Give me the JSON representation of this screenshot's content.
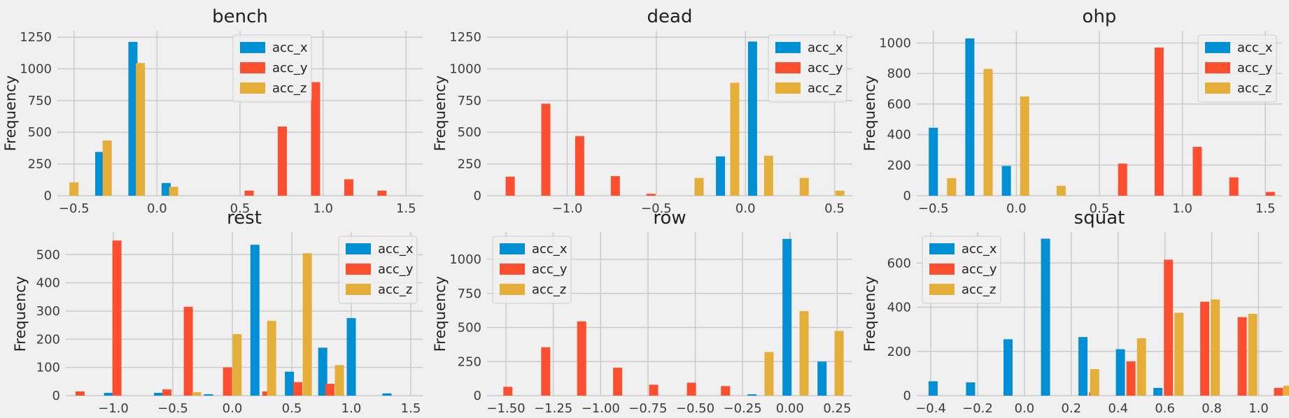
{
  "figure": {
    "background": "#f0f0f0",
    "grid_color": "#cbcbcb"
  },
  "chart_data": [
    {
      "type": "bar",
      "title": "bench",
      "ylabel": "Frequency",
      "xlabel": "",
      "xlim": [
        -0.6,
        1.6
      ],
      "ylim": [
        0,
        1300
      ],
      "xticks": [
        -0.5,
        0.0,
        0.5,
        1.0,
        1.5
      ],
      "yticks": [
        0,
        250,
        500,
        750,
        1000,
        1250
      ],
      "xtick_decimals": 1,
      "legend": "top-center",
      "grid": true,
      "series": [
        {
          "name": "acc_x",
          "color": "#008fd5",
          "points": [
            [
              -0.345,
              345
            ],
            [
              -0.145,
              1212
            ],
            [
              0.055,
              100
            ]
          ]
        },
        {
          "name": "acc_y",
          "color": "#fc4f30",
          "points": [
            [
              0.555,
              40
            ],
            [
              0.755,
              545
            ],
            [
              0.955,
              895
            ],
            [
              1.155,
              130
            ],
            [
              1.355,
              40
            ]
          ]
        },
        {
          "name": "acc_z",
          "color": "#e5ae38",
          "points": [
            [
              -0.5,
              105
            ],
            [
              -0.3,
              435
            ],
            [
              -0.1,
              1045
            ],
            [
              0.1,
              70
            ]
          ]
        }
      ]
    },
    {
      "type": "bar",
      "title": "dead",
      "ylabel": "Frequency",
      "xlabel": "",
      "xlim": [
        -1.45,
        0.6
      ],
      "ylim": [
        0,
        1300
      ],
      "xticks": [
        -1.0,
        -0.5,
        0.0,
        0.5
      ],
      "yticks": [
        0,
        250,
        500,
        750,
        1000,
        1250
      ],
      "xtick_decimals": 1,
      "legend": "top-right",
      "grid": true,
      "series": [
        {
          "name": "acc_x",
          "color": "#008fd5",
          "points": [
            [
              -0.14,
              310
            ],
            [
              0.04,
              1215
            ]
          ]
        },
        {
          "name": "acc_y",
          "color": "#fc4f30",
          "points": [
            [
              -1.32,
              150
            ],
            [
              -1.12,
              725
            ],
            [
              -0.93,
              470
            ],
            [
              -0.73,
              155
            ],
            [
              -0.53,
              15
            ]
          ]
        },
        {
          "name": "acc_z",
          "color": "#e5ae38",
          "points": [
            [
              -0.26,
              140
            ],
            [
              -0.06,
              890
            ],
            [
              0.13,
              315
            ],
            [
              0.33,
              140
            ],
            [
              0.53,
              40
            ]
          ]
        }
      ]
    },
    {
      "type": "bar",
      "title": "ohp",
      "ylabel": "Frequency",
      "xlabel": "",
      "xlim": [
        -0.6,
        1.6
      ],
      "ylim": [
        0,
        1080
      ],
      "xticks": [
        -0.5,
        0.0,
        0.5,
        1.0,
        1.5
      ],
      "yticks": [
        0,
        200,
        400,
        600,
        800,
        1000
      ],
      "xtick_decimals": 1,
      "legend": "top-right",
      "grid": true,
      "series": [
        {
          "name": "acc_x",
          "color": "#008fd5",
          "points": [
            [
              -0.5,
              445
            ],
            [
              -0.28,
              1030
            ],
            [
              -0.06,
              195
            ]
          ]
        },
        {
          "name": "acc_y",
          "color": "#fc4f30",
          "points": [
            [
              0.64,
              210
            ],
            [
              0.86,
              970
            ],
            [
              1.09,
              320
            ],
            [
              1.31,
              120
            ],
            [
              1.53,
              25
            ]
          ]
        },
        {
          "name": "acc_z",
          "color": "#e5ae38",
          "points": [
            [
              -0.39,
              115
            ],
            [
              -0.17,
              830
            ],
            [
              0.05,
              650
            ],
            [
              0.27,
              65
            ]
          ]
        }
      ]
    },
    {
      "type": "bar",
      "title": "rest",
      "ylabel": "Frequency",
      "xlabel": "",
      "xlim": [
        -1.4,
        1.6
      ],
      "ylim": [
        0,
        580
      ],
      "xticks": [
        -1.0,
        -0.5,
        0.0,
        0.5,
        1.0,
        1.5
      ],
      "yticks": [
        0,
        100,
        200,
        300,
        400,
        500
      ],
      "xtick_decimals": 1,
      "legend": "top-right",
      "grid": true,
      "series": [
        {
          "name": "acc_x",
          "color": "#008fd5",
          "points": [
            [
              -1.04,
              10
            ],
            [
              -0.62,
              10
            ],
            [
              -0.2,
              5
            ],
            [
              0.19,
              535
            ],
            [
              0.48,
              85
            ],
            [
              0.76,
              170
            ],
            [
              1.0,
              275
            ],
            [
              1.3,
              8
            ]
          ]
        },
        {
          "name": "acc_y",
          "color": "#fc4f30",
          "points": [
            [
              -1.28,
              15
            ],
            [
              -0.97,
              550
            ],
            [
              -0.55,
              22
            ],
            [
              -0.37,
              315
            ],
            [
              -0.04,
              100
            ],
            [
              0.29,
              15
            ],
            [
              0.55,
              48
            ],
            [
              0.82,
              42
            ]
          ]
        },
        {
          "name": "acc_z",
          "color": "#e5ae38",
          "points": [
            [
              -0.3,
              12
            ],
            [
              0.04,
              218
            ],
            [
              0.33,
              265
            ],
            [
              0.63,
              505
            ],
            [
              0.9,
              108
            ]
          ]
        }
      ]
    },
    {
      "type": "bar",
      "title": "row",
      "ylabel": "Frequency",
      "xlabel": "",
      "xlim": [
        -1.6,
        0.33
      ],
      "ylim": [
        0,
        1200
      ],
      "xticks": [
        -1.5,
        -1.25,
        -1.0,
        -0.75,
        -0.5,
        -0.25,
        0.0,
        0.25
      ],
      "yticks": [
        0,
        250,
        500,
        750,
        1000
      ],
      "xtick_decimals": 2,
      "legend": "top-left",
      "grid": true,
      "series": [
        {
          "name": "acc_x",
          "color": "#008fd5",
          "points": [
            [
              -0.2,
              10
            ],
            [
              -0.015,
              1150
            ],
            [
              0.17,
              250
            ]
          ]
        },
        {
          "name": "acc_y",
          "color": "#fc4f30",
          "points": [
            [
              -1.49,
              65
            ],
            [
              -1.29,
              355
            ],
            [
              -1.1,
              545
            ],
            [
              -0.91,
              205
            ],
            [
              -0.72,
              80
            ],
            [
              -0.52,
              95
            ],
            [
              -0.34,
              70
            ]
          ]
        },
        {
          "name": "acc_z",
          "color": "#e5ae38",
          "points": [
            [
              -0.11,
              320
            ],
            [
              0.075,
              620
            ],
            [
              0.26,
              475
            ]
          ]
        }
      ]
    },
    {
      "type": "bar",
      "title": "squat",
      "ylabel": "Frequency",
      "xlabel": "",
      "xlim": [
        -0.46,
        1.1
      ],
      "ylim": [
        0,
        740
      ],
      "xticks": [
        -0.4,
        -0.2,
        0.0,
        0.2,
        0.4,
        0.6,
        0.8,
        1.0
      ],
      "yticks": [
        0,
        200,
        400,
        600
      ],
      "xtick_decimals": 1,
      "legend": "top-left",
      "grid": true,
      "series": [
        {
          "name": "acc_x",
          "color": "#008fd5",
          "points": [
            [
              -0.39,
              65
            ],
            [
              -0.23,
              60
            ],
            [
              -0.07,
              255
            ],
            [
              0.09,
              710
            ],
            [
              0.25,
              265
            ],
            [
              0.41,
              210
            ],
            [
              0.57,
              35
            ]
          ]
        },
        {
          "name": "acc_y",
          "color": "#fc4f30",
          "points": [
            [
              0.295,
              15
            ],
            [
              0.455,
              155
            ],
            [
              0.615,
              615
            ],
            [
              0.77,
              425
            ],
            [
              0.93,
              355
            ],
            [
              1.085,
              35
            ]
          ]
        },
        {
          "name": "acc_z",
          "color": "#e5ae38",
          "points": [
            [
              0.3,
              120
            ],
            [
              0.5,
              260
            ],
            [
              0.66,
              375
            ],
            [
              0.815,
              435
            ],
            [
              0.975,
              370
            ],
            [
              1.125,
              45
            ]
          ]
        }
      ]
    }
  ]
}
